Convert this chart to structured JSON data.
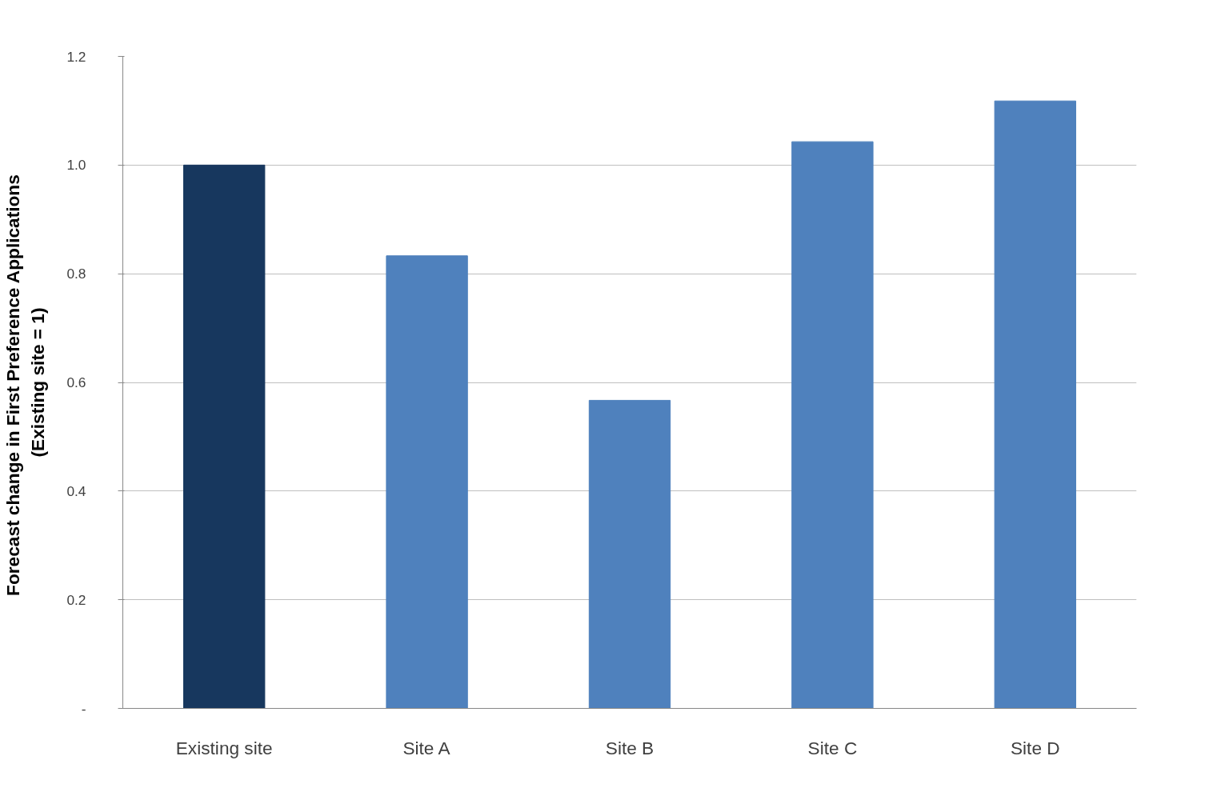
{
  "chart_data": {
    "type": "bar",
    "categories": [
      "Existing site",
      "Site A",
      "Site B",
      "Site C",
      "Site D"
    ],
    "values": [
      1.0,
      0.833,
      0.567,
      1.043,
      1.118
    ],
    "colors": [
      "#17375e",
      "#4f81bd",
      "#4f81bd",
      "#4f81bd",
      "#4f81bd"
    ],
    "ylabel": "Forecast  change in First Preference Applications\n(Existing site = 1)",
    "ylim": [
      0,
      1.2
    ],
    "yticks": [
      {
        "value": 0,
        "label": "-"
      },
      0.2,
      0.4,
      0.6,
      0.8,
      {
        "value": 1.0,
        "label": "1.0"
      },
      1.2
    ],
    "grid": "y"
  }
}
